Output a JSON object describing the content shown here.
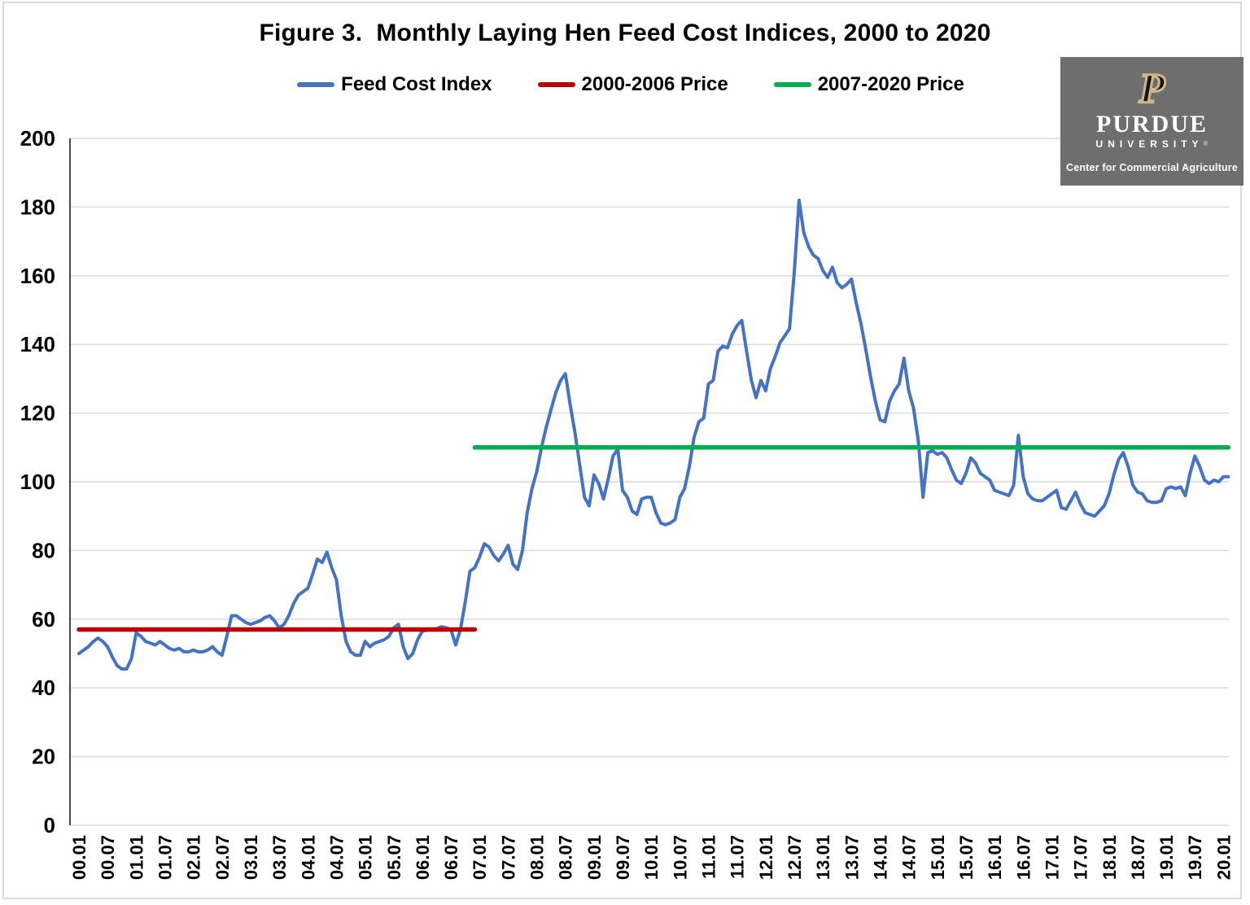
{
  "title": "Figure 3.  Monthly Laying Hen Feed Cost Indices, 2000 to 2020",
  "logo": {
    "p_letter": "P",
    "name": "PURDUE",
    "sub": "UNIVERSITY",
    "reg": "®",
    "tagline": "Center for Commercial Agriculture",
    "bg_color": "#6e6e6e",
    "gold_color": "#ceb888"
  },
  "chart_data": {
    "type": "line",
    "title": "Figure 3.  Monthly Laying Hen Feed Cost Indices, 2000 to 2020",
    "xlabel": "",
    "ylabel": "",
    "frequency": "monthly",
    "x_start": "2000.01",
    "x_end": "2020.02",
    "ylim": [
      0,
      200
    ],
    "grid": true,
    "legend_position": "top",
    "colors": {
      "grid": "#d9d9d9",
      "axis": "#4a4a4a",
      "border": "#c9c9c9",
      "text": "#000000"
    },
    "y_ticks": [
      0,
      20,
      40,
      60,
      80,
      100,
      120,
      140,
      160,
      180,
      200
    ],
    "x_tick_labels": [
      "00.01",
      "00.07",
      "01.01",
      "01.07",
      "02.01",
      "02.07",
      "03.01",
      "03.07",
      "04.01",
      "04.07",
      "05.01",
      "05.07",
      "06.01",
      "06.07",
      "07.01",
      "07.07",
      "08.01",
      "08.07",
      "09.01",
      "09.07",
      "10.01",
      "10.07",
      "11.01",
      "11.07",
      "12.01",
      "12.07",
      "13.01",
      "13.07",
      "14.01",
      "14.07",
      "15.01",
      "15.07",
      "16.01",
      "16.07",
      "17.01",
      "17.07",
      "18.01",
      "18.07",
      "19.01",
      "19.07",
      "20.01"
    ],
    "series": [
      {
        "name": "Feed Cost Index",
        "type": "line",
        "color": "#4472c4",
        "values": [
          50,
          51,
          52,
          53.5,
          54.5,
          53.5,
          52,
          49,
          46.5,
          45.5,
          45.5,
          48.5,
          56,
          55,
          53.5,
          53,
          52.5,
          53.5,
          52.5,
          51.5,
          51,
          51.5,
          50.5,
          50.5,
          51,
          50.5,
          50.5,
          51,
          52,
          50.5,
          49.5,
          55,
          61,
          61,
          60,
          59,
          58.5,
          59,
          59.5,
          60.5,
          61,
          59.5,
          57.5,
          58.5,
          61,
          64.5,
          67,
          68,
          69,
          73,
          77.5,
          76.5,
          79.5,
          75,
          71.5,
          61,
          53.5,
          50.5,
          49.5,
          49.5,
          53.5,
          52,
          53,
          53.5,
          54,
          55,
          57.5,
          58.5,
          52,
          48.5,
          50,
          54,
          56.5,
          56.8,
          57,
          57.2,
          57.8,
          57.5,
          57,
          52.5,
          57,
          65,
          74,
          75,
          78,
          82,
          81,
          78.5,
          77,
          79,
          81.5,
          76,
          74.5,
          80,
          91,
          98,
          103,
          110,
          116,
          121,
          126,
          129.5,
          131.5,
          122.5,
          114.5,
          105,
          95.5,
          93,
          102,
          99.5,
          95,
          101,
          107.5,
          109.5,
          97.5,
          95.5,
          91.5,
          90.5,
          95,
          95.5,
          95.5,
          91,
          88,
          87.5,
          88,
          89,
          95.5,
          98,
          104.5,
          113,
          117.5,
          118.5,
          128.5,
          129.5,
          138,
          139.5,
          139,
          143,
          145.5,
          147,
          138,
          129.5,
          124.5,
          129.5,
          126.5,
          133,
          136.5,
          140.5,
          142.5,
          144.5,
          161,
          182,
          172.5,
          168.5,
          166,
          165,
          161.5,
          159.5,
          162.5,
          158,
          156.5,
          157.5,
          159,
          152,
          146,
          138.5,
          130.5,
          123.5,
          118,
          117.5,
          123.5,
          126.5,
          128.5,
          136,
          126.5,
          121.5,
          112,
          95.5,
          108.5,
          109,
          108,
          108.5,
          107,
          103.5,
          100.5,
          99.5,
          102.5,
          107,
          105.5,
          102.5,
          101.5,
          100.5,
          97.5,
          97,
          96.5,
          96,
          99,
          113.5,
          101.5,
          96.5,
          95,
          94.5,
          94.5,
          95.5,
          96.5,
          97.5,
          92.5,
          92,
          94.5,
          97,
          93.5,
          91,
          90.5,
          90,
          91.5,
          93,
          96.5,
          102,
          106.5,
          108.5,
          104.5,
          99,
          97,
          96.5,
          94.5,
          94,
          94,
          94.5,
          98,
          98.5,
          98,
          98.5,
          96,
          102.5,
          107.5,
          104.5,
          100.5,
          99.5,
          100.5,
          100,
          101.5,
          101.5
        ]
      },
      {
        "name": "2000-2006 Price",
        "type": "hline",
        "color": "#c00000",
        "value": 57,
        "from_month": 0,
        "to_month": 83
      },
      {
        "name": "2007-2020 Price",
        "type": "hline",
        "color": "#00b050",
        "value": 110,
        "from_month": 83,
        "to_month": 241
      }
    ]
  }
}
